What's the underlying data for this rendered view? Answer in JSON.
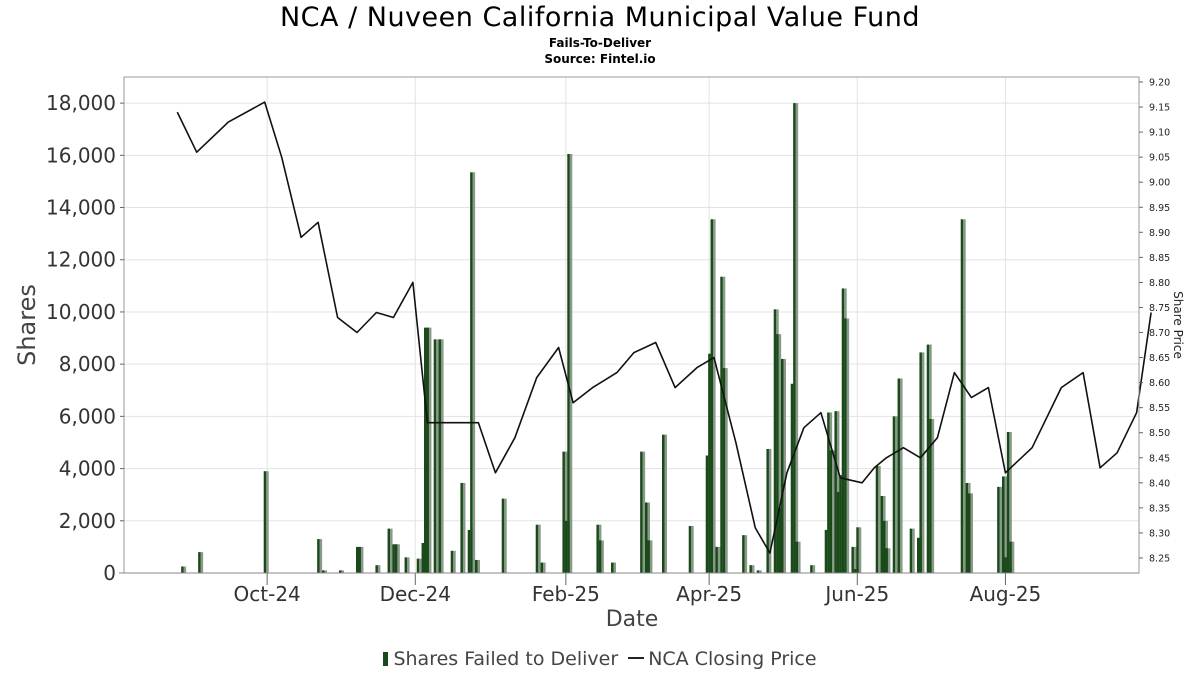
{
  "title": "NCA / Nuveen California Municipal Value Fund",
  "subtitle": "Fails-To-Deliver",
  "source": "Source: Fintel.io",
  "chart_data": {
    "type": "bar",
    "xlabel": "Date",
    "ylabel": "Shares",
    "y2label": "Share Price",
    "x_ticks": [
      "Oct-24",
      "Dec-24",
      "Feb-25",
      "Apr-25",
      "Jun-25",
      "Aug-25"
    ],
    "x_tick_dates": [
      "2024-10-01",
      "2024-12-01",
      "2025-02-01",
      "2025-04-01",
      "2025-06-01",
      "2025-08-01"
    ],
    "x_range": [
      "2024-08-01",
      "2025-09-25"
    ],
    "ylim": [
      0,
      19000
    ],
    "y_ticks": [
      0,
      2000,
      4000,
      6000,
      8000,
      10000,
      12000,
      14000,
      16000,
      18000
    ],
    "y_tick_labels": [
      "0",
      "2,000",
      "4,000",
      "6,000",
      "8,000",
      "10,000",
      "12,000",
      "14,000",
      "16,000",
      "18,000"
    ],
    "y2lim": [
      8.22,
      9.21
    ],
    "y2_ticks": [
      "8.25",
      "8.30",
      "8.35",
      "8.40",
      "8.45",
      "8.50",
      "8.55",
      "8.60",
      "8.65",
      "8.70",
      "8.75",
      "8.80",
      "8.85",
      "8.90",
      "8.95",
      "9.00",
      "9.05",
      "9.10",
      "9.15",
      "9.20"
    ],
    "grid": true,
    "legend_position": "bottom",
    "series": [
      {
        "name": "Shares Failed to Deliver",
        "type": "bar",
        "color": "#1a4a1a",
        "shadow_color": "#8a9a8a",
        "points": [
          [
            "2024-08-27",
            250
          ],
          [
            "2024-09-03",
            800
          ],
          [
            "2024-09-30",
            3900
          ],
          [
            "2024-10-22",
            1300
          ],
          [
            "2024-10-24",
            100
          ],
          [
            "2024-10-31",
            100
          ],
          [
            "2024-11-07",
            1000
          ],
          [
            "2024-11-08",
            1000
          ],
          [
            "2024-11-15",
            300
          ],
          [
            "2024-11-20",
            1700
          ],
          [
            "2024-11-22",
            1100
          ],
          [
            "2024-11-23",
            1100
          ],
          [
            "2024-11-27",
            600
          ],
          [
            "2024-12-02",
            550
          ],
          [
            "2024-12-04",
            1150
          ],
          [
            "2024-12-05",
            9400
          ],
          [
            "2024-12-06",
            9400
          ],
          [
            "2024-12-09",
            8950
          ],
          [
            "2024-12-11",
            8950
          ],
          [
            "2024-12-16",
            850
          ],
          [
            "2024-12-20",
            3450
          ],
          [
            "2024-12-23",
            1650
          ],
          [
            "2024-12-24",
            15350
          ],
          [
            "2024-12-26",
            500
          ],
          [
            "2025-01-06",
            2850
          ],
          [
            "2025-01-20",
            1850
          ],
          [
            "2025-01-22",
            400
          ],
          [
            "2025-01-31",
            4650
          ],
          [
            "2025-02-01",
            2000
          ],
          [
            "2025-02-02",
            16050
          ],
          [
            "2025-02-14",
            1850
          ],
          [
            "2025-02-15",
            1250
          ],
          [
            "2025-02-20",
            400
          ],
          [
            "2025-03-04",
            4650
          ],
          [
            "2025-03-06",
            2700
          ],
          [
            "2025-03-07",
            1250
          ],
          [
            "2025-03-13",
            5300
          ],
          [
            "2025-03-24",
            1800
          ],
          [
            "2025-03-31",
            4500
          ],
          [
            "2025-04-01",
            8400
          ],
          [
            "2025-04-02",
            13550
          ],
          [
            "2025-04-04",
            1000
          ],
          [
            "2025-04-06",
            11350
          ],
          [
            "2025-04-07",
            7850
          ],
          [
            "2025-04-15",
            1450
          ],
          [
            "2025-04-18",
            300
          ],
          [
            "2025-04-21",
            100
          ],
          [
            "2025-04-25",
            4750
          ],
          [
            "2025-04-28",
            10100
          ],
          [
            "2025-04-29",
            9150
          ],
          [
            "2025-04-30",
            2500
          ],
          [
            "2025-05-01",
            8200
          ],
          [
            "2025-05-05",
            7250
          ],
          [
            "2025-05-06",
            18000
          ],
          [
            "2025-05-07",
            1200
          ],
          [
            "2025-05-13",
            300
          ],
          [
            "2025-05-19",
            1650
          ],
          [
            "2025-05-20",
            6150
          ],
          [
            "2025-05-21",
            4700
          ],
          [
            "2025-05-23",
            6200
          ],
          [
            "2025-05-24",
            3100
          ],
          [
            "2025-05-25",
            3750
          ],
          [
            "2025-05-26",
            10900
          ],
          [
            "2025-05-27",
            9750
          ],
          [
            "2025-05-30",
            1000
          ],
          [
            "2025-05-31",
            150
          ],
          [
            "2025-06-01",
            1750
          ],
          [
            "2025-06-09",
            4100
          ],
          [
            "2025-06-11",
            2950
          ],
          [
            "2025-06-12",
            2000
          ],
          [
            "2025-06-13",
            950
          ],
          [
            "2025-06-16",
            6000
          ],
          [
            "2025-06-18",
            7450
          ],
          [
            "2025-06-23",
            1700
          ],
          [
            "2025-06-26",
            1350
          ],
          [
            "2025-06-27",
            8450
          ],
          [
            "2025-06-30",
            8750
          ],
          [
            "2025-07-01",
            5900
          ],
          [
            "2025-07-14",
            13550
          ],
          [
            "2025-07-16",
            3450
          ],
          [
            "2025-07-17",
            3050
          ],
          [
            "2025-07-29",
            3300
          ],
          [
            "2025-07-31",
            3700
          ],
          [
            "2025-08-01",
            600
          ],
          [
            "2025-08-02",
            5400
          ],
          [
            "2025-08-03",
            1200
          ]
        ]
      },
      {
        "name": "NCA Closing Price",
        "type": "line",
        "color": "#111111",
        "points": [
          [
            "2024-08-25",
            9.14
          ],
          [
            "2024-09-02",
            9.06
          ],
          [
            "2024-09-15",
            9.12
          ],
          [
            "2024-09-30",
            9.16
          ],
          [
            "2024-10-07",
            9.05
          ],
          [
            "2024-10-15",
            8.89
          ],
          [
            "2024-10-22",
            8.92
          ],
          [
            "2024-10-30",
            8.73
          ],
          [
            "2024-11-07",
            8.7
          ],
          [
            "2024-11-15",
            8.74
          ],
          [
            "2024-11-22",
            8.73
          ],
          [
            "2024-11-30",
            8.8
          ],
          [
            "2024-12-06",
            8.52
          ],
          [
            "2024-12-27",
            8.52
          ],
          [
            "2025-01-03",
            8.42
          ],
          [
            "2025-01-11",
            8.49
          ],
          [
            "2025-01-20",
            8.61
          ],
          [
            "2025-01-29",
            8.67
          ],
          [
            "2025-02-04",
            8.56
          ],
          [
            "2025-02-12",
            8.59
          ],
          [
            "2025-02-22",
            8.62
          ],
          [
            "2025-03-01",
            8.66
          ],
          [
            "2025-03-10",
            8.68
          ],
          [
            "2025-03-18",
            8.59
          ],
          [
            "2025-03-27",
            8.63
          ],
          [
            "2025-04-03",
            8.65
          ],
          [
            "2025-04-12",
            8.48
          ],
          [
            "2025-04-20",
            8.31
          ],
          [
            "2025-04-26",
            8.26
          ],
          [
            "2025-05-03",
            8.42
          ],
          [
            "2025-05-10",
            8.51
          ],
          [
            "2025-05-17",
            8.54
          ],
          [
            "2025-05-25",
            8.41
          ],
          [
            "2025-06-03",
            8.4
          ],
          [
            "2025-06-08",
            8.43
          ],
          [
            "2025-06-13",
            8.45
          ],
          [
            "2025-06-20",
            8.47
          ],
          [
            "2025-06-27",
            8.45
          ],
          [
            "2025-07-04",
            8.49
          ],
          [
            "2025-07-11",
            8.62
          ],
          [
            "2025-07-18",
            8.57
          ],
          [
            "2025-07-25",
            8.59
          ],
          [
            "2025-08-01",
            8.42
          ],
          [
            "2025-08-12",
            8.47
          ],
          [
            "2025-08-24",
            8.59
          ],
          [
            "2025-09-02",
            8.62
          ],
          [
            "2025-09-09",
            8.43
          ],
          [
            "2025-09-16",
            8.46
          ],
          [
            "2025-09-24",
            8.54
          ],
          [
            "2025-09-30",
            8.74
          ]
        ]
      }
    ]
  },
  "legend": {
    "bar_label": "Shares Failed to Deliver",
    "line_label": "NCA Closing Price"
  }
}
